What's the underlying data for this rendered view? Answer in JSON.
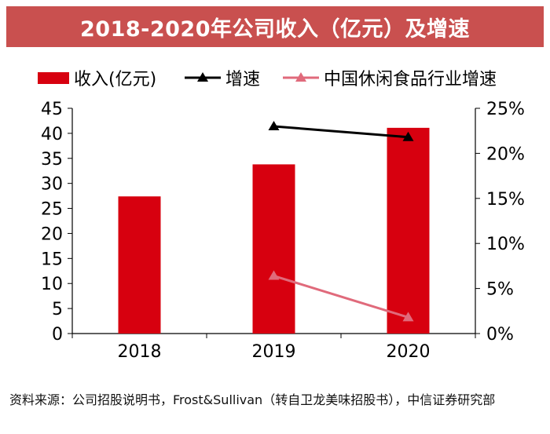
{
  "title": "2018-2020年公司收入（亿元）及增速",
  "source": "资料来源：公司招股说明书，Frost&Sullivan（转自卫龙美味招股书），中信证券研究部",
  "colors": {
    "title_bg": "#c9504f",
    "revenue": "#d7000f",
    "growth": "#000000",
    "industry": "#e06a7b"
  },
  "chart_data": {
    "type": "bar",
    "categories": [
      "2018",
      "2019",
      "2020"
    ],
    "series": [
      {
        "name": "收入(亿元)",
        "kind": "bar",
        "axis": "left",
        "values": [
          27.4,
          33.8,
          41.1
        ]
      },
      {
        "name": "增速",
        "kind": "line",
        "marker": "triangle",
        "axis": "right",
        "values": [
          null,
          0.23,
          0.218
        ]
      },
      {
        "name": "中国休闲食品行业增速",
        "kind": "line",
        "marker": "triangle",
        "axis": "right",
        "values": [
          null,
          0.064,
          0.018
        ]
      }
    ],
    "y_left": {
      "min": 0,
      "max": 45,
      "step": 5,
      "ticks": [
        "0",
        "5",
        "10",
        "15",
        "20",
        "25",
        "30",
        "35",
        "40",
        "45"
      ]
    },
    "y_right": {
      "min": 0,
      "max": 0.25,
      "step": 0.05,
      "ticks": [
        "0%",
        "5%",
        "10%",
        "15%",
        "20%",
        "25%"
      ]
    },
    "grid": false,
    "legend_position": "top"
  }
}
